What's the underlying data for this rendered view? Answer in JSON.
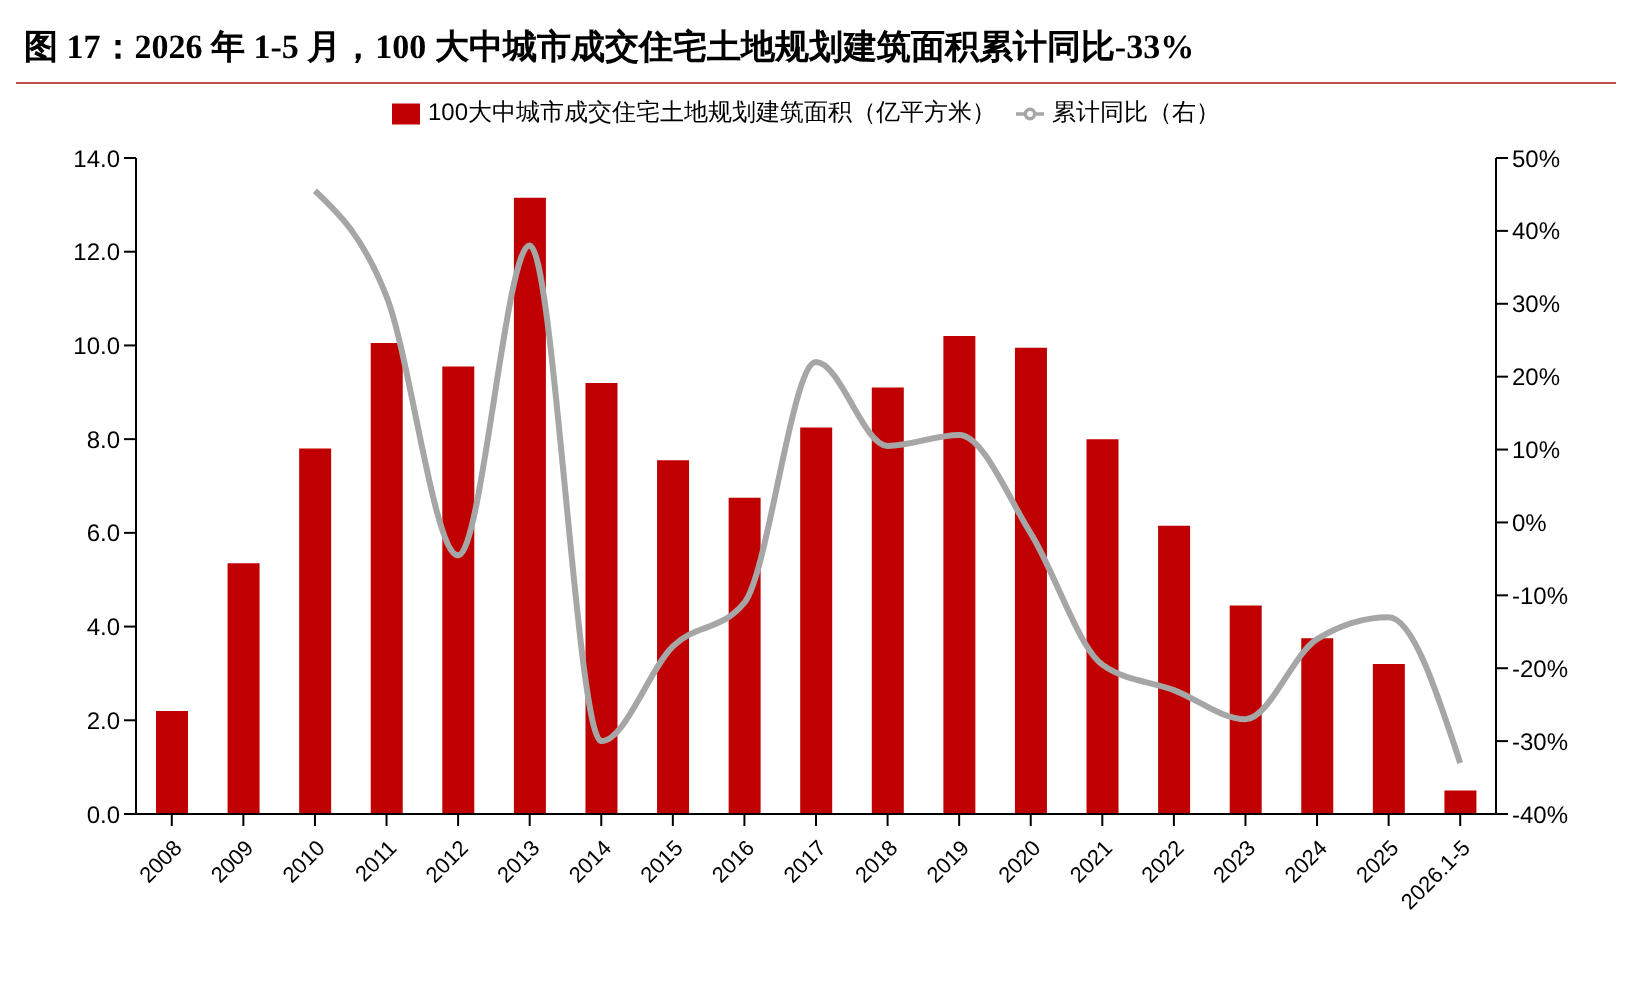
{
  "chart_data": {
    "type": "bar",
    "title": "图 17：2026 年 1-5 月，100 大中城市成交住宅土地规划建筑面积累计同比-33%",
    "categories": [
      "2008",
      "2009",
      "2010",
      "2011",
      "2012",
      "2013",
      "2014",
      "2015",
      "2016",
      "2017",
      "2018",
      "2019",
      "2020",
      "2021",
      "2022",
      "2023",
      "2024",
      "2025",
      "2026.1-5"
    ],
    "series": [
      {
        "name": "100大中城市成交住宅土地规划建筑面积（亿平方米）",
        "color": "#c00000",
        "values": [
          2.2,
          5.35,
          7.8,
          10.05,
          9.55,
          13.15,
          9.2,
          7.55,
          6.75,
          8.25,
          9.1,
          10.2,
          9.95,
          8.0,
          6.15,
          4.45,
          3.75,
          3.2,
          0.5
        ]
      },
      {
        "name": "累计同比（右）",
        "type": "line",
        "axis": "y2",
        "color": "#a6a6a6",
        "values": [
          null,
          null,
          45.5,
          31,
          -4.5,
          38,
          -30,
          -17,
          -11,
          22,
          10.5,
          12,
          -1.5,
          -19.5,
          -23,
          -27,
          -16,
          -13,
          -33
        ]
      }
    ],
    "ylim": [
      0,
      14
    ],
    "yticks": [
      {
        "value": 0,
        "label": "0.0"
      },
      {
        "value": 2,
        "label": "2.0"
      },
      {
        "value": 4,
        "label": "4.0"
      },
      {
        "value": 6,
        "label": "6.0"
      },
      {
        "value": 8,
        "label": "8.0"
      },
      {
        "value": 10,
        "label": "10.0"
      },
      {
        "value": 12,
        "label": "12.0"
      },
      {
        "value": 14,
        "label": "14.0"
      }
    ],
    "y2lim": [
      -40,
      50
    ],
    "y2ticks": [
      {
        "value": -40,
        "label": "-40%"
      },
      {
        "value": -30,
        "label": "-30%"
      },
      {
        "value": -20,
        "label": "-20%"
      },
      {
        "value": -10,
        "label": "-10%"
      },
      {
        "value": 0,
        "label": "0%"
      },
      {
        "value": 10,
        "label": "10%"
      },
      {
        "value": 20,
        "label": "20%"
      },
      {
        "value": 30,
        "label": "30%"
      },
      {
        "value": 40,
        "label": "40%"
      },
      {
        "value": 50,
        "label": "50%"
      }
    ],
    "legend": "top",
    "grid": false,
    "marker": "none",
    "line_style": "solid"
  }
}
